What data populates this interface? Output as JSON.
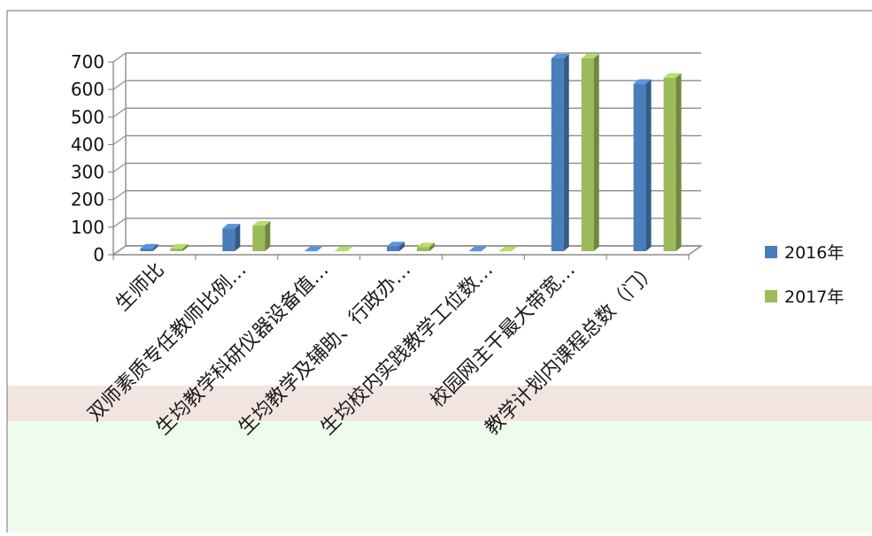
{
  "chart_data": {
    "type": "bar",
    "style": "3d-clustered-column",
    "categories": [
      "生师比",
      "双师素质专任教师比例…",
      "生均教学科研仪器设备值…",
      "生均教学及辅助、行政办…",
      "生均校内实践教学工位数…",
      "校园网主干最大带宽…",
      "教学计划内课程总数（门）"
    ],
    "series": [
      {
        "name": "2016年",
        "color": "#4a7ebb",
        "values": [
          10,
          83,
          1,
          18,
          1,
          700,
          608
        ]
      },
      {
        "name": "2017年",
        "color": "#9bbb59",
        "values": [
          10,
          93,
          1,
          15,
          1,
          700,
          630
        ]
      }
    ],
    "y_ticks": [
      "0",
      "100",
      "200",
      "300",
      "400",
      "500",
      "600",
      "700"
    ],
    "ylim": [
      0,
      700
    ],
    "title": "",
    "xlabel": "",
    "ylabel": "",
    "grid": true,
    "legend_position": "right",
    "background_bands": [
      "#f2e4e1",
      "#eefcec"
    ]
  }
}
